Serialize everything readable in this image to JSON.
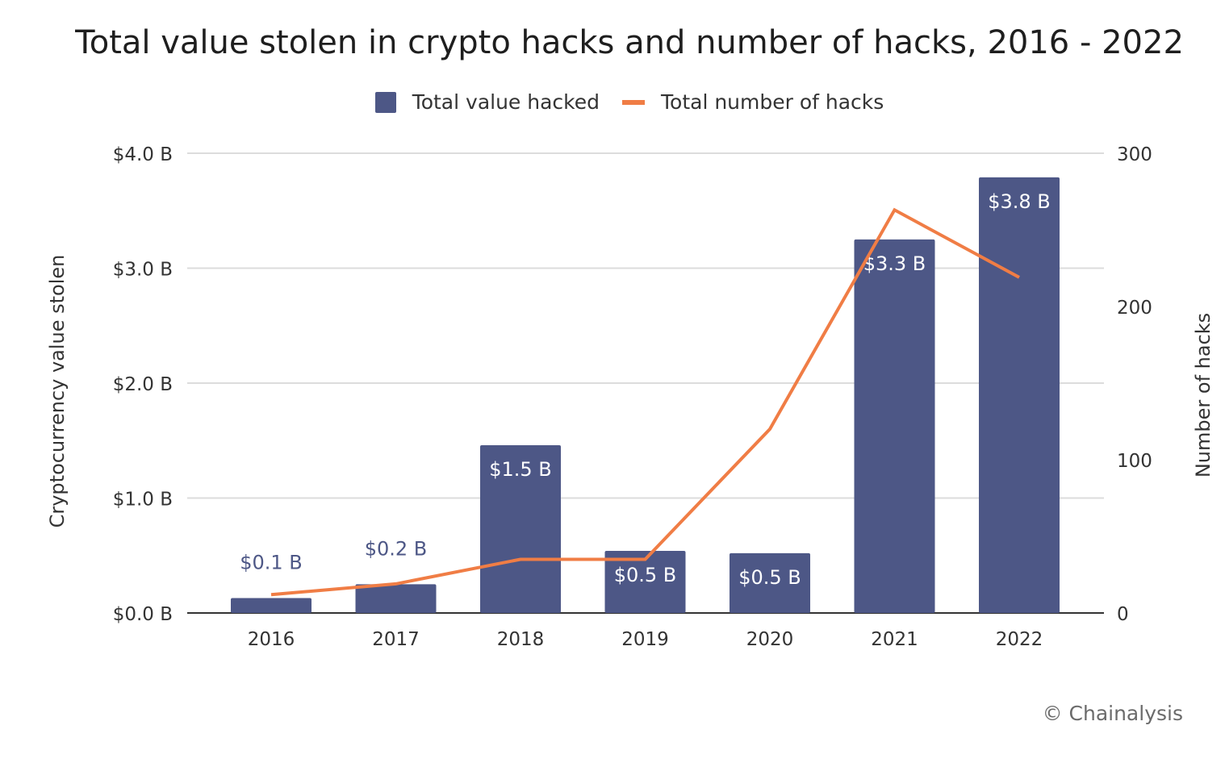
{
  "title": "Total value stolen in crypto hacks and number of hacks, 2016 - 2022",
  "credit": "© Chainalysis",
  "colors": {
    "bar": "#4d5786",
    "line": "#f07d45",
    "grid": "#dcdcdc",
    "label_outside": "#4d5786"
  },
  "chart_data": {
    "type": "bar",
    "categories": [
      "2016",
      "2017",
      "2018",
      "2019",
      "2020",
      "2021",
      "2022"
    ],
    "series": [
      {
        "name": "Total value hacked",
        "type": "bar",
        "axis": "left",
        "values": [
          0.13,
          0.25,
          1.46,
          0.54,
          0.52,
          3.25,
          3.79
        ],
        "labels": [
          "$0.1 B",
          "$0.2 B",
          "$1.5 B",
          "$0.5 B",
          "$0.5 B",
          "$3.3 B",
          "$3.8 B"
        ]
      },
      {
        "name": "Total number of hacks",
        "type": "line",
        "axis": "right",
        "values": [
          12,
          19,
          35,
          35,
          120,
          263,
          219
        ]
      }
    ],
    "ylabel": "Cryptocurrency value stolen",
    "y2label": "Number of hacks",
    "ylim": [
      0,
      4
    ],
    "y2lim": [
      0,
      300
    ],
    "yticks": [
      "$0.0 B",
      "$1.0 B",
      "$2.0 B",
      "$3.0 B",
      "$4.0 B"
    ],
    "y2ticks": [
      "0",
      "100",
      "200",
      "300"
    ],
    "grid": true,
    "legend": "top-center"
  }
}
